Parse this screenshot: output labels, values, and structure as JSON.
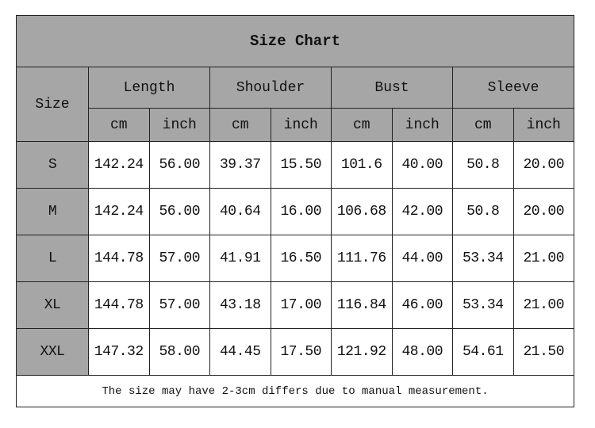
{
  "title": "Size Chart",
  "size_header": "Size",
  "groups": [
    "Length",
    "Shoulder",
    "Bust",
    "Sleeve"
  ],
  "units": [
    "cm",
    "inch"
  ],
  "rows": [
    {
      "size": "S",
      "values": [
        "142.24",
        "56.00",
        "39.37",
        "15.50",
        "101.6",
        "40.00",
        "50.8",
        "20.00"
      ]
    },
    {
      "size": "M",
      "values": [
        "142.24",
        "56.00",
        "40.64",
        "16.00",
        "106.68",
        "42.00",
        "50.8",
        "20.00"
      ]
    },
    {
      "size": "L",
      "values": [
        "144.78",
        "57.00",
        "41.91",
        "16.50",
        "111.76",
        "44.00",
        "53.34",
        "21.00"
      ]
    },
    {
      "size": "XL",
      "values": [
        "144.78",
        "57.00",
        "43.18",
        "17.00",
        "116.84",
        "46.00",
        "53.34",
        "21.00"
      ]
    },
    {
      "size": "XXL",
      "values": [
        "147.32",
        "58.00",
        "44.45",
        "17.50",
        "121.92",
        "48.00",
        "54.61",
        "21.50"
      ]
    }
  ],
  "note": "The size may have 2-3cm differs due to manual measurement.",
  "colors": {
    "header_bg": "#a6a6a6",
    "cell_bg": "#ffffff",
    "border": "#222222"
  }
}
